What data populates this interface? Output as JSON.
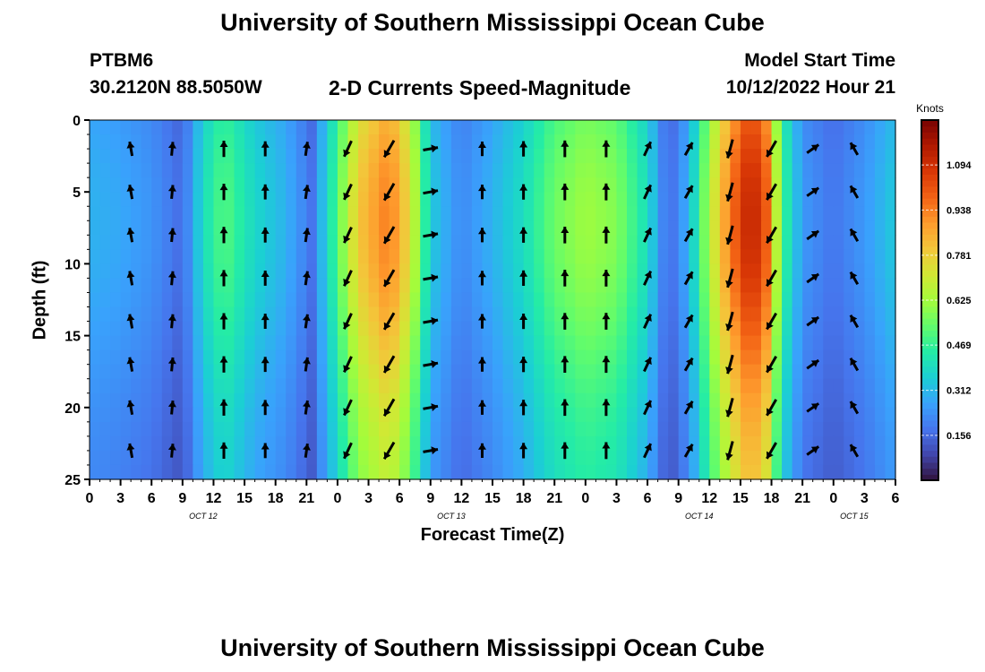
{
  "header": {
    "title": "University of Southern Mississippi Ocean Cube",
    "station": "PTBM6",
    "coords": "30.2120N  88.5050W",
    "subtitle": "2-D Currents Speed-Magnitude",
    "model_start_label": "Model Start Time",
    "model_start_value": "10/12/2022 Hour 21",
    "footer_title": "University of Southern Mississippi Ocean Cube"
  },
  "chart_data": {
    "type": "heatmap",
    "title": "2-D Currents Speed-Magnitude",
    "xlabel": "Forecast Time(Z)",
    "ylabel": "Depth (ft)",
    "x_hours_range": [
      0,
      78
    ],
    "ylim": [
      0,
      25
    ],
    "x_tick_labels": [
      "0",
      "3",
      "6",
      "9",
      "12",
      "15",
      "18",
      "21",
      "0",
      "3",
      "6",
      "9",
      "12",
      "15",
      "18",
      "21",
      "0",
      "3",
      "6",
      "9",
      "12",
      "15",
      "18",
      "21",
      "0",
      "3",
      "6"
    ],
    "y_tick_values": [
      0,
      5,
      10,
      15,
      20,
      25
    ],
    "date_labels": [
      {
        "label": "OCT 12",
        "hour": 11
      },
      {
        "label": "OCT 13",
        "hour": 35
      },
      {
        "label": "OCT 14",
        "hour": 59
      },
      {
        "label": "OCT 15",
        "hour": 74
      }
    ],
    "colorbar": {
      "unit": "Knots",
      "min": 0,
      "max": 1.25,
      "ticks": [
        0.156,
        0.312,
        0.469,
        0.625,
        0.781,
        0.938,
        1.094
      ],
      "colormap": [
        "#30123b",
        "#4145ab",
        "#4675ed",
        "#39a2fc",
        "#1bcfd4",
        "#24eca6",
        "#61fc6c",
        "#a4fc3b",
        "#d1e834",
        "#f3c63a",
        "#fe9b2d",
        "#f36315",
        "#d93806",
        "#b11901",
        "#7a0402"
      ]
    },
    "speed_profile": [
      {
        "hour": 0,
        "speed": 0.3
      },
      {
        "hour": 3,
        "speed": 0.28
      },
      {
        "hour": 6,
        "speed": 0.24
      },
      {
        "hour": 9,
        "speed": 0.16
      },
      {
        "hour": 11,
        "speed": 0.4
      },
      {
        "hour": 13,
        "speed": 0.52
      },
      {
        "hour": 16,
        "speed": 0.38
      },
      {
        "hour": 19,
        "speed": 0.3
      },
      {
        "hour": 21.5,
        "speed": 0.18
      },
      {
        "hour": 23.5,
        "speed": 0.45
      },
      {
        "hour": 26,
        "speed": 0.8
      },
      {
        "hour": 29,
        "speed": 0.95
      },
      {
        "hour": 31,
        "speed": 0.75
      },
      {
        "hour": 33,
        "speed": 0.35
      },
      {
        "hour": 36,
        "speed": 0.22
      },
      {
        "hour": 39,
        "speed": 0.3
      },
      {
        "hour": 42,
        "speed": 0.4
      },
      {
        "hour": 45,
        "speed": 0.55
      },
      {
        "hour": 48,
        "speed": 0.62
      },
      {
        "hour": 51,
        "speed": 0.58
      },
      {
        "hour": 54,
        "speed": 0.4
      },
      {
        "hour": 56,
        "speed": 0.15
      },
      {
        "hour": 58,
        "speed": 0.3
      },
      {
        "hour": 60,
        "speed": 0.65
      },
      {
        "hour": 62,
        "speed": 0.95
      },
      {
        "hour": 64,
        "speed": 1.15
      },
      {
        "hour": 65.5,
        "speed": 1.0
      },
      {
        "hour": 67,
        "speed": 0.5
      },
      {
        "hour": 69,
        "speed": 0.25
      },
      {
        "hour": 72,
        "speed": 0.18
      },
      {
        "hour": 75,
        "speed": 0.25
      },
      {
        "hour": 78,
        "speed": 0.35
      }
    ],
    "vector_columns": [
      {
        "hour": 4,
        "direction_deg": 350
      },
      {
        "hour": 8,
        "direction_deg": 5
      },
      {
        "hour": 13,
        "direction_deg": 0
      },
      {
        "hour": 17,
        "direction_deg": 0
      },
      {
        "hour": 21,
        "direction_deg": 8
      },
      {
        "hour": 25,
        "direction_deg": 205
      },
      {
        "hour": 29,
        "direction_deg": 210
      },
      {
        "hour": 33,
        "direction_deg": 80
      },
      {
        "hour": 38,
        "direction_deg": 0
      },
      {
        "hour": 42,
        "direction_deg": 0
      },
      {
        "hour": 46,
        "direction_deg": 0
      },
      {
        "hour": 50,
        "direction_deg": 0
      },
      {
        "hour": 54,
        "direction_deg": 25
      },
      {
        "hour": 58,
        "direction_deg": 30
      },
      {
        "hour": 62,
        "direction_deg": 195
      },
      {
        "hour": 66,
        "direction_deg": 210
      },
      {
        "hour": 70,
        "direction_deg": 55
      },
      {
        "hour": 74,
        "direction_deg": 330
      }
    ],
    "vector_depths_ft": [
      2,
      5,
      8,
      11,
      14,
      17,
      20,
      23
    ]
  }
}
